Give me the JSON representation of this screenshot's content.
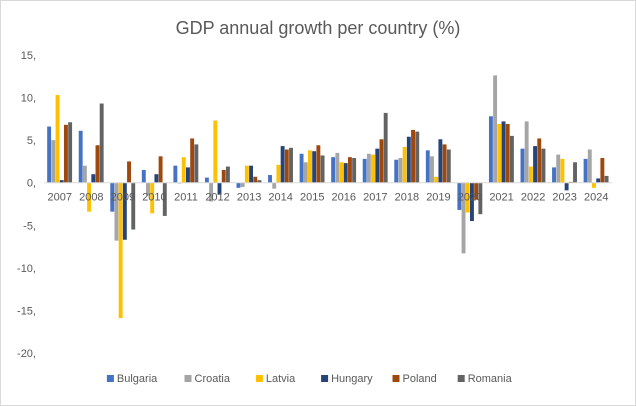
{
  "chart_data": {
    "type": "bar",
    "title": "GDP annual growth per country (%)",
    "xlabel": "",
    "ylabel": "",
    "ylim": [
      -20,
      15
    ],
    "yticks": [
      "15,",
      "10,",
      "5,",
      "0,",
      "-5,",
      "-10,",
      "-15,",
      "-20,"
    ],
    "ytick_values": [
      15,
      10,
      5,
      0,
      -5,
      -10,
      -15,
      -20
    ],
    "grid": false,
    "legend": "bottom",
    "categories": [
      "2007",
      "2008",
      "2009",
      "2010",
      "2011",
      "2012",
      "2013",
      "2014",
      "2015",
      "2016",
      "2017",
      "2018",
      "2019",
      "2020",
      "2021",
      "2022",
      "2023",
      "2024"
    ],
    "series": [
      {
        "name": "Bulgaria",
        "color": "#4472c4",
        "values": [
          6.6,
          6.1,
          -3.4,
          1.5,
          2.0,
          0.6,
          -0.6,
          0.9,
          3.4,
          3.0,
          2.8,
          2.7,
          3.8,
          -3.2,
          7.8,
          4.0,
          1.8,
          2.8
        ]
      },
      {
        "name": "Croatia",
        "color": "#a5a5a5",
        "values": [
          5.0,
          2.0,
          -6.8,
          -1.5,
          -0.1,
          -2.2,
          -0.5,
          -0.7,
          2.4,
          3.5,
          3.4,
          2.9,
          3.1,
          -8.3,
          12.6,
          7.2,
          3.3,
          3.9
        ]
      },
      {
        "name": "Latvia",
        "color": "#ffc000",
        "values": [
          10.3,
          -3.4,
          -15.9,
          -3.6,
          3.0,
          7.3,
          2.0,
          2.1,
          3.8,
          2.4,
          3.3,
          4.2,
          0.7,
          -3.5,
          6.9,
          1.9,
          2.8,
          -0.6
        ]
      },
      {
        "name": "Hungary",
        "color": "#264478",
        "values": [
          0.3,
          1.0,
          -6.7,
          1.0,
          1.8,
          -1.4,
          2.0,
          4.3,
          3.7,
          2.3,
          4.0,
          5.4,
          5.1,
          -4.5,
          7.2,
          4.3,
          -0.9,
          0.5
        ]
      },
      {
        "name": "Poland",
        "color": "#9e480e",
        "values": [
          6.8,
          4.4,
          2.5,
          3.1,
          5.2,
          1.5,
          0.7,
          3.9,
          4.4,
          3.0,
          5.1,
          6.2,
          4.5,
          -2.0,
          6.9,
          5.2,
          0.1,
          2.9
        ]
      },
      {
        "name": "Romania",
        "color": "#636363",
        "values": [
          7.1,
          9.3,
          -5.5,
          -3.9,
          4.5,
          1.9,
          0.3,
          4.1,
          3.2,
          2.9,
          8.2,
          6.0,
          3.9,
          -3.7,
          5.5,
          4.0,
          2.4,
          0.8
        ]
      }
    ]
  }
}
